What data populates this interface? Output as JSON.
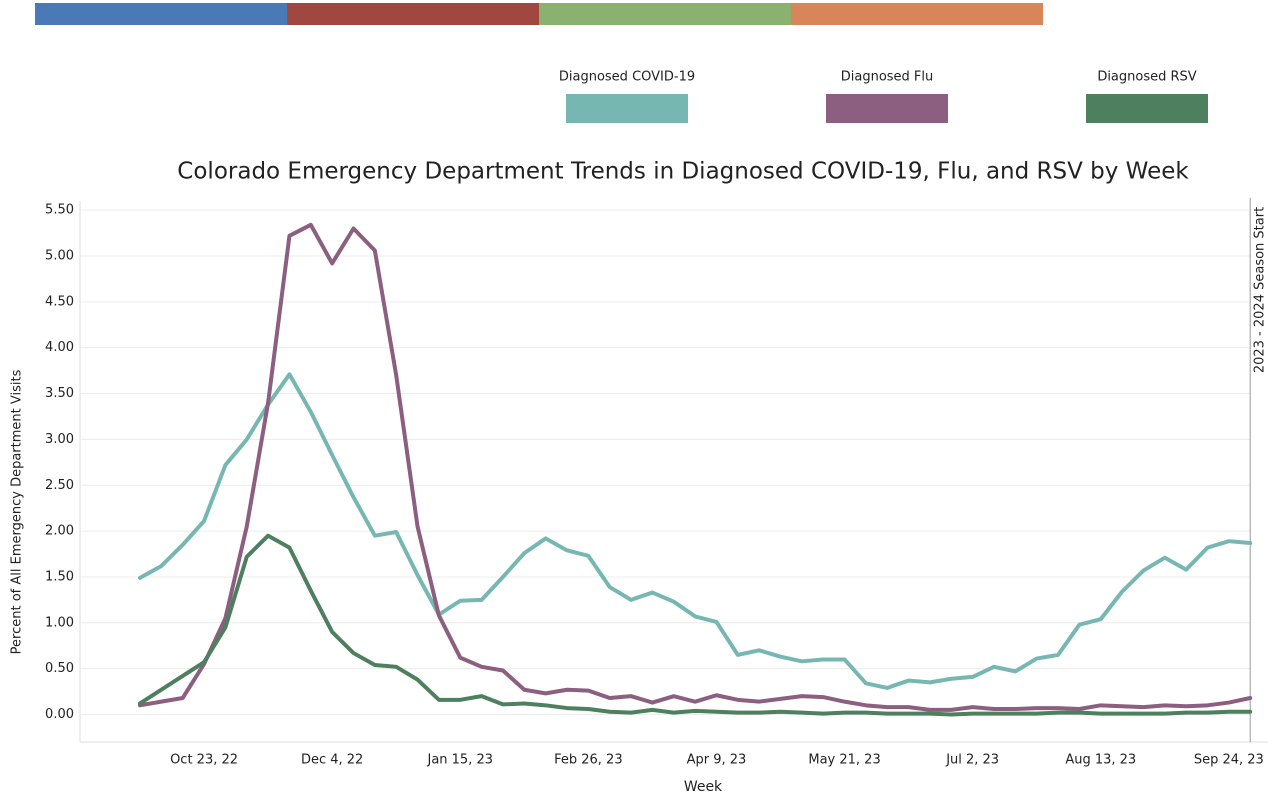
{
  "chart_data": {
    "type": "line",
    "title": "Colorado Emergency Department Trends in Diagnosed COVID-19, Flu, and RSV by Week",
    "xlabel": "Week",
    "ylabel": "Percent of All Emergency Department Visits",
    "annotation": "2023 - 2024 Season Start",
    "categories": [
      null,
      null,
      null,
      "Oct 23, 22",
      null,
      null,
      null,
      null,
      null,
      "Dec 4, 22",
      null,
      null,
      null,
      null,
      null,
      "Jan 15, 23",
      null,
      null,
      null,
      null,
      null,
      "Feb 26, 23",
      null,
      null,
      null,
      null,
      null,
      "Apr 9, 23",
      null,
      null,
      null,
      null,
      null,
      "May 21, 23",
      null,
      null,
      null,
      null,
      null,
      "Jul 2, 23",
      null,
      null,
      null,
      null,
      null,
      "Aug 13, 23",
      null,
      null,
      null,
      null,
      null,
      "Sep 24, 23",
      null
    ],
    "ylim": [
      -0.3,
      5.6
    ],
    "yticks": [
      {
        "value": 0,
        "label": "0.00"
      },
      {
        "value": 0.5,
        "label": "0.50"
      },
      {
        "value": 1,
        "label": "1.00"
      },
      {
        "value": 1.5,
        "label": "1.50"
      },
      {
        "value": 2,
        "label": "2.00"
      },
      {
        "value": 2.5,
        "label": "2.50"
      },
      {
        "value": 3,
        "label": "3.00"
      },
      {
        "value": 3.5,
        "label": "3.50"
      },
      {
        "value": 4,
        "label": "4.00"
      },
      {
        "value": 4.5,
        "label": "4.50"
      },
      {
        "value": 5,
        "label": "5.00"
      },
      {
        "value": 5.5,
        "label": "5.50"
      }
    ],
    "grid": true,
    "series": [
      {
        "name": "Diagnosed COVID-19",
        "color": "#76b7b2",
        "values": [
          1.49,
          1.62,
          1.85,
          2.11,
          2.72,
          3.0,
          3.38,
          3.71,
          3.3,
          2.83,
          2.37,
          1.95,
          1.99,
          1.52,
          1.09,
          1.24,
          1.25,
          1.5,
          1.76,
          1.92,
          1.79,
          1.73,
          1.39,
          1.25,
          1.33,
          1.23,
          1.07,
          1.01,
          0.65,
          0.7,
          0.63,
          0.58,
          0.6,
          0.6,
          0.34,
          0.29,
          0.37,
          0.35,
          0.39,
          0.41,
          0.52,
          0.47,
          0.61,
          0.65,
          0.98,
          1.04,
          1.34,
          1.57,
          1.71,
          1.58,
          1.82,
          1.89,
          1.87
        ]
      },
      {
        "name": "Diagnosed Flu",
        "color": "#8c5e80",
        "values": [
          0.1,
          0.14,
          0.18,
          0.55,
          1.05,
          2.05,
          3.4,
          5.22,
          5.34,
          4.92,
          5.3,
          5.06,
          3.7,
          2.05,
          1.08,
          0.62,
          0.52,
          0.48,
          0.27,
          0.23,
          0.27,
          0.26,
          0.18,
          0.2,
          0.13,
          0.2,
          0.14,
          0.21,
          0.16,
          0.14,
          0.17,
          0.2,
          0.19,
          0.14,
          0.1,
          0.08,
          0.08,
          0.05,
          0.05,
          0.08,
          0.06,
          0.06,
          0.07,
          0.07,
          0.06,
          0.1,
          0.09,
          0.08,
          0.1,
          0.09,
          0.1,
          0.13,
          0.18
        ]
      },
      {
        "name": "Diagnosed RSV",
        "color": "#4e7f5e",
        "values": [
          0.12,
          0.27,
          0.42,
          0.57,
          0.95,
          1.72,
          1.95,
          1.82,
          1.35,
          0.9,
          0.67,
          0.54,
          0.52,
          0.38,
          0.16,
          0.16,
          0.2,
          0.11,
          0.12,
          0.1,
          0.07,
          0.06,
          0.03,
          0.02,
          0.05,
          0.02,
          0.04,
          0.03,
          0.02,
          0.02,
          0.03,
          0.02,
          0.01,
          0.02,
          0.02,
          0.01,
          0.01,
          0.01,
          0.0,
          0.01,
          0.01,
          0.01,
          0.01,
          0.02,
          0.02,
          0.01,
          0.01,
          0.01,
          0.01,
          0.02,
          0.02,
          0.03,
          0.03
        ]
      }
    ]
  }
}
